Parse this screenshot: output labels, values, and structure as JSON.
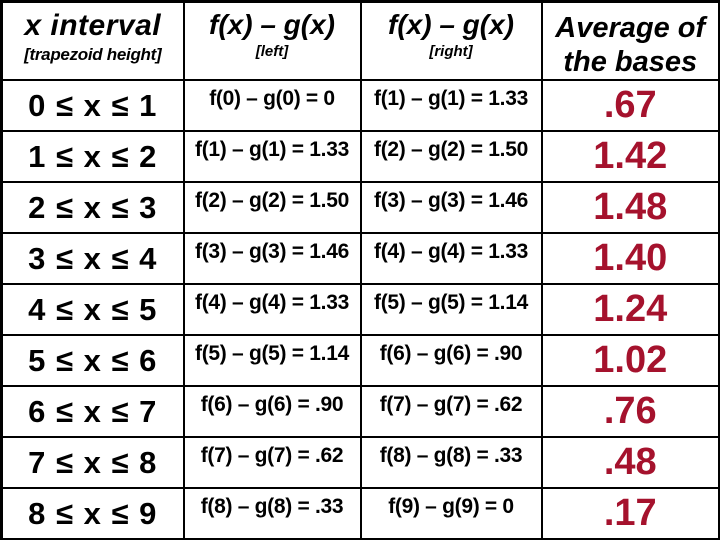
{
  "colors": {
    "background": "#FFFFFF",
    "grid": "#000000",
    "header_text": "#000000",
    "body_text": "#000000",
    "average_text": "#A5122D"
  },
  "chart_data": {
    "type": "table",
    "columns": [
      {
        "title": "x interval",
        "subtitle": "[trapezoid height]"
      },
      {
        "title": "f(x) – g(x)",
        "subtitle": "[left]"
      },
      {
        "title": "f(x) – g(x)",
        "subtitle": "[right]"
      },
      {
        "title": "Average of the bases",
        "subtitle": ""
      }
    ],
    "rows": [
      {
        "interval": "0 ≤ x ≤ 1",
        "left": "f(0) – g(0) = 0",
        "right": "f(1) – g(1) = 1.33",
        "average": ".67"
      },
      {
        "interval": "1 ≤ x ≤ 2",
        "left": "f(1) – g(1) = 1.33",
        "right": "f(2) – g(2) = 1.50",
        "average": "1.42"
      },
      {
        "interval": "2 ≤ x ≤ 3",
        "left": "f(2) – g(2) = 1.50",
        "right": "f(3) – g(3) = 1.46",
        "average": "1.48"
      },
      {
        "interval": "3 ≤ x ≤ 4",
        "left": "f(3) – g(3) = 1.46",
        "right": "f(4) – g(4) = 1.33",
        "average": "1.40"
      },
      {
        "interval": "4 ≤ x ≤ 5",
        "left": "f(4) – g(4) = 1.33",
        "right": "f(5) – g(5) = 1.14",
        "average": "1.24"
      },
      {
        "interval": "5 ≤ x ≤ 6",
        "left": "f(5) – g(5) = 1.14",
        "right": "f(6) – g(6) = .90",
        "average": "1.02"
      },
      {
        "interval": "6 ≤ x ≤ 7",
        "left": "f(6) – g(6) = .90",
        "right": "f(7) – g(7) = .62",
        "average": ".76"
      },
      {
        "interval": "7 ≤ x ≤ 8",
        "left": "f(7) – g(7) = .62",
        "right": "f(8) – g(8) = .33",
        "average": ".48"
      },
      {
        "interval": "8 ≤ x ≤ 9",
        "left": "f(8) – g(8) = .33",
        "right": "f(9) – g(9) = 0",
        "average": ".17"
      }
    ]
  }
}
